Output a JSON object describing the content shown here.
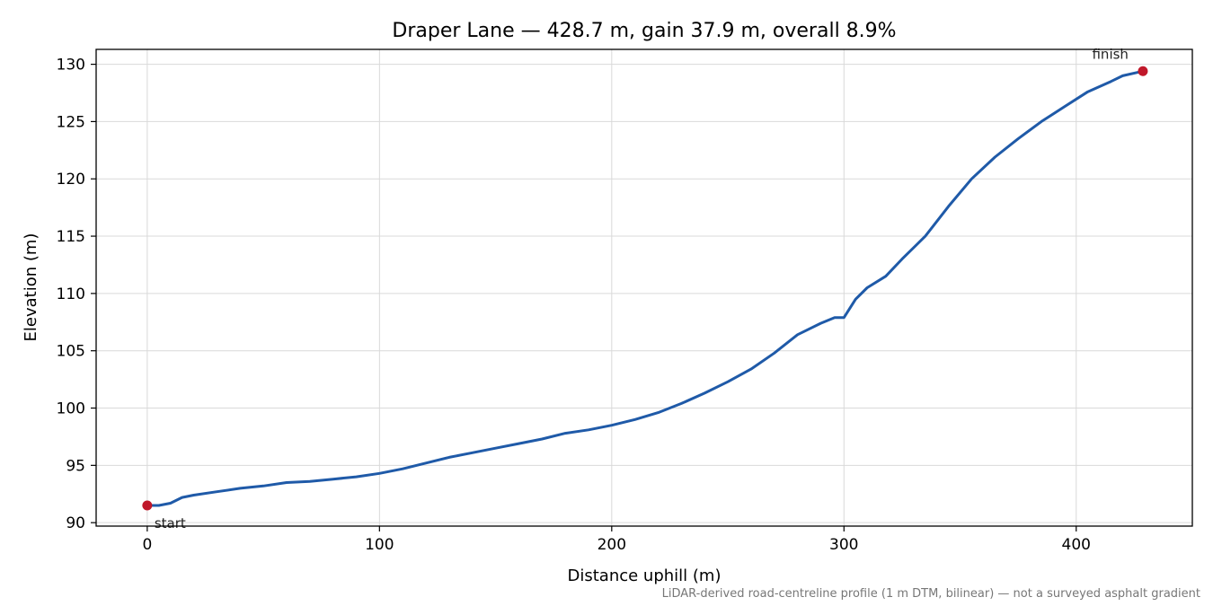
{
  "chart_data": {
    "type": "line",
    "title": "Draper Lane — 428.7 m, gain 37.9 m, overall 8.9%",
    "xlabel": "Distance uphill (m)",
    "ylabel": "Elevation (m)",
    "xlim": [
      -22,
      450
    ],
    "ylim": [
      89.7,
      131.3
    ],
    "xticks": [
      0,
      100,
      200,
      300,
      400
    ],
    "yticks": [
      90,
      95,
      100,
      105,
      110,
      115,
      120,
      125,
      130
    ],
    "grid": true,
    "series": [
      {
        "color": "#1f5aa8",
        "x": [
          0,
          5,
          10,
          15,
          20,
          30,
          40,
          50,
          60,
          70,
          80,
          90,
          100,
          110,
          120,
          130,
          140,
          150,
          160,
          170,
          180,
          190,
          200,
          210,
          220,
          230,
          240,
          250,
          260,
          270,
          280,
          290,
          296,
          300,
          305,
          310,
          318,
          325,
          335,
          345,
          355,
          365,
          375,
          385,
          395,
          405,
          415,
          420,
          428.7
        ],
        "values": [
          91.5,
          91.5,
          91.7,
          92.2,
          92.4,
          92.7,
          93.0,
          93.2,
          93.5,
          93.6,
          93.8,
          94.0,
          94.3,
          94.7,
          95.2,
          95.7,
          96.1,
          96.5,
          96.9,
          97.3,
          97.8,
          98.1,
          98.5,
          99.0,
          99.6,
          100.4,
          101.3,
          102.3,
          103.4,
          104.8,
          106.4,
          107.4,
          107.9,
          107.9,
          109.5,
          110.5,
          111.5,
          113.0,
          115.0,
          117.6,
          120.0,
          121.9,
          123.5,
          125.0,
          126.3,
          127.6,
          128.5,
          129.0,
          129.4
        ]
      }
    ],
    "endpoints": [
      {
        "label": "start",
        "x": 0,
        "y": 91.5
      },
      {
        "label": "finish",
        "x": 428.7,
        "y": 129.4
      }
    ],
    "footnote": "LiDAR-derived road-centreline profile (1 m DTM, bilinear) — not a surveyed asphalt gradient"
  }
}
